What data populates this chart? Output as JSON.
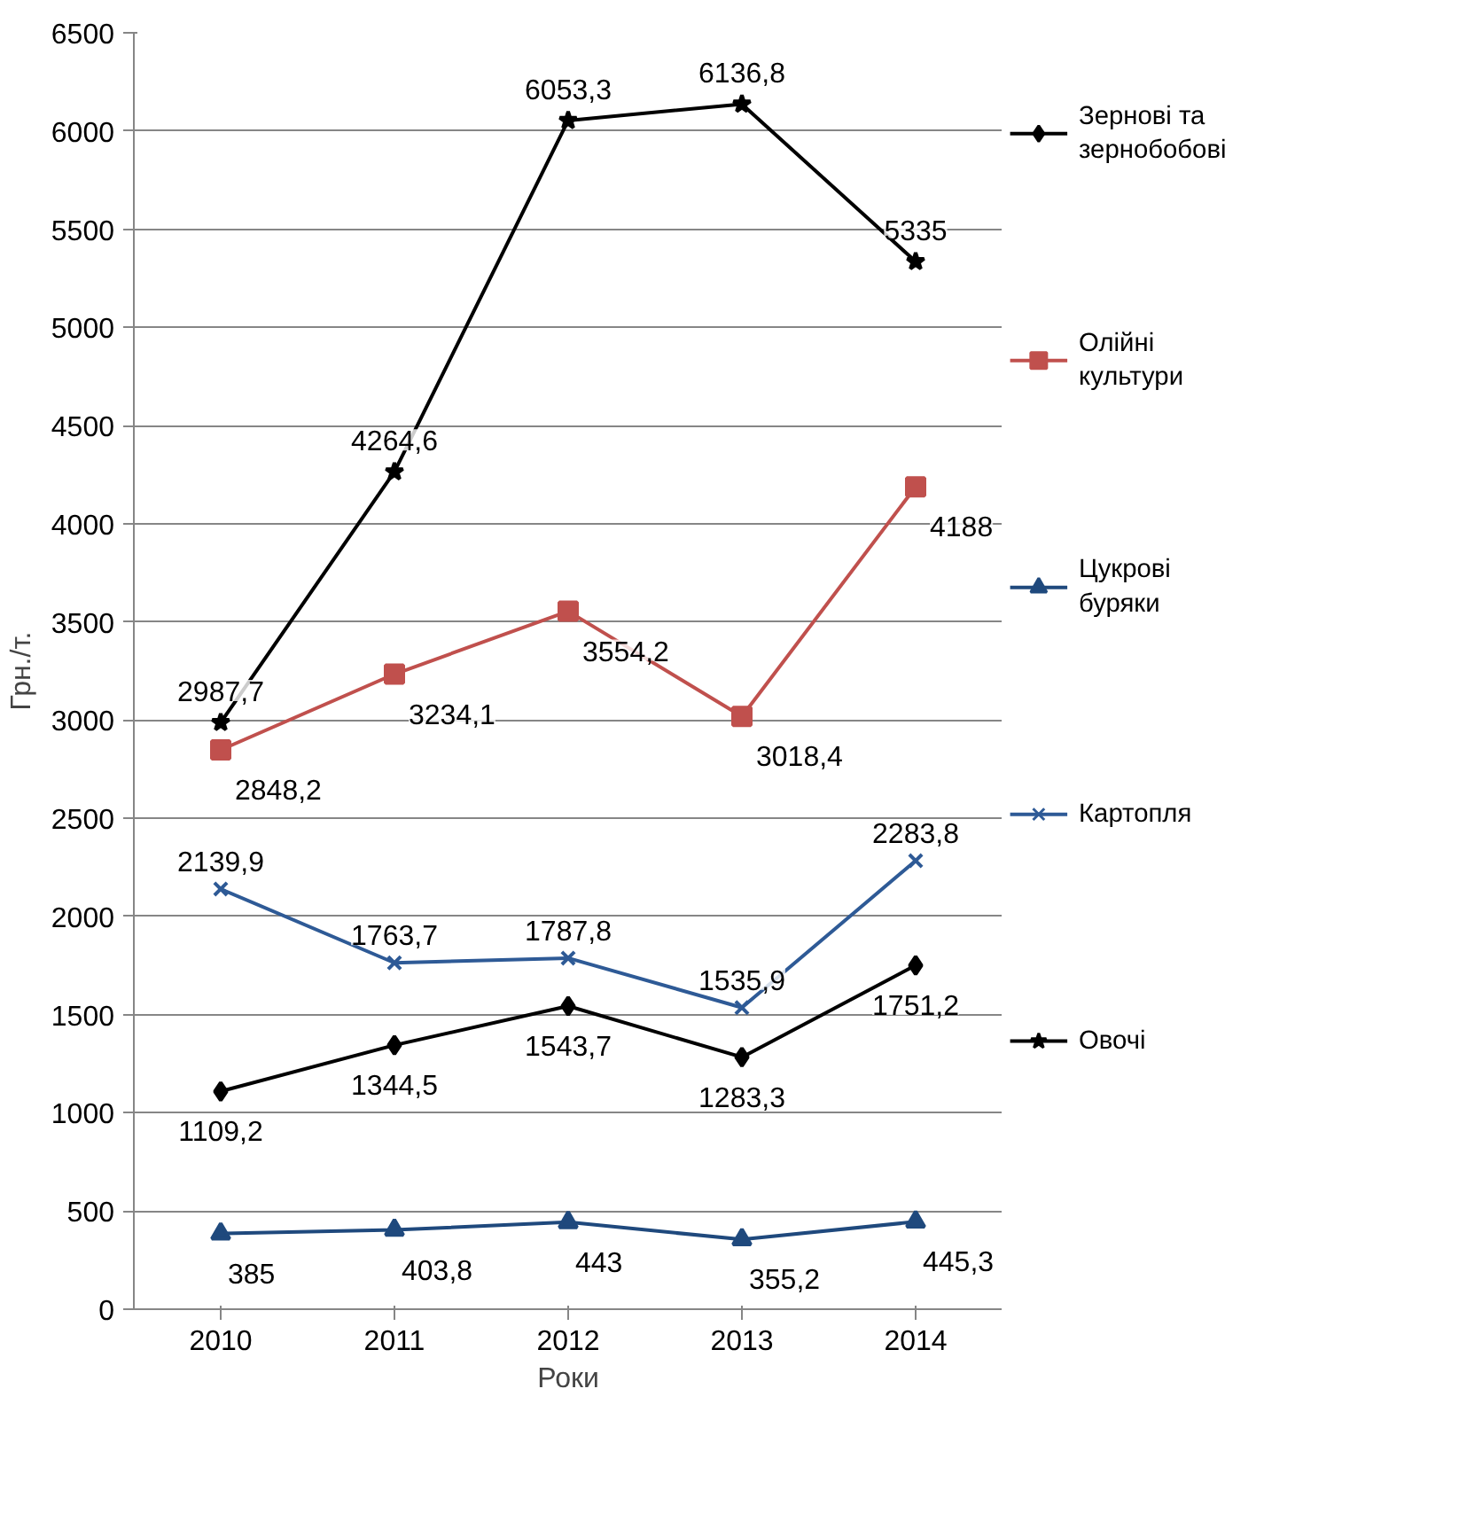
{
  "chart_data": {
    "type": "line",
    "xlabel": "Роки",
    "ylabel": "Грн./т.",
    "categories": [
      "2010",
      "2011",
      "2012",
      "2013",
      "2014"
    ],
    "series": [
      {
        "name": "Зернові та зернобобові",
        "color": "#000000",
        "marker": "diamond",
        "values": [
          1109.2,
          1344.5,
          1543.7,
          1283.3,
          1751.2
        ],
        "value_labels": [
          "1109,2",
          "1344,5",
          "1543,7",
          "1283,3",
          "1751,2"
        ]
      },
      {
        "name": "Олійні культури",
        "color": "#c0504d",
        "marker": "square",
        "values": [
          2848.2,
          3234.1,
          3554.2,
          3018.4,
          4188
        ],
        "value_labels": [
          "2848,2",
          "3234,1",
          "3554,2",
          "3018,4",
          "4188"
        ]
      },
      {
        "name": "Цукрові буряки",
        "color": "#1f497d",
        "marker": "triangle",
        "values": [
          385,
          403.8,
          443,
          355.2,
          445.3
        ],
        "value_labels": [
          "385",
          "403,8",
          "443",
          "355,2",
          "445,3"
        ]
      },
      {
        "name": "Картопля",
        "color": "#2e5a96",
        "marker": "cross",
        "values": [
          2139.9,
          1763.7,
          1787.8,
          1535.9,
          2283.8
        ],
        "value_labels": [
          "2139,9",
          "1763,7",
          "1787,8",
          "1535,9",
          "2283,8"
        ]
      },
      {
        "name": "Овочі",
        "color": "#000000",
        "marker": "star",
        "values": [
          2987.7,
          4264.6,
          6053.3,
          6136.8,
          5335
        ],
        "value_labels": [
          "2987,7",
          "4264,6",
          "6053,3",
          "6136,8",
          "5335"
        ]
      }
    ],
    "ylim": [
      0,
      6500
    ],
    "yticks": [
      0,
      500,
      1000,
      1500,
      2000,
      2500,
      3000,
      3500,
      4000,
      4500,
      5000,
      5500,
      6000,
      6500
    ],
    "grid": "y",
    "legend": "right",
    "line_style": "solid"
  }
}
